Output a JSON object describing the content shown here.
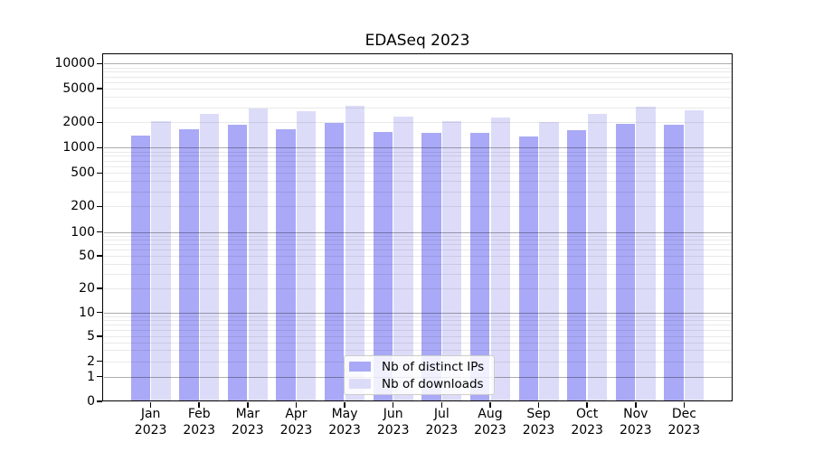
{
  "title": "EDASeq 2023",
  "chart_data": {
    "type": "bar",
    "title": "EDASeq 2023",
    "categories": [
      "Jan 2023",
      "Feb 2023",
      "Mar 2023",
      "Apr 2023",
      "May 2023",
      "Jun 2023",
      "Jul 2023",
      "Aug 2023",
      "Sep 2023",
      "Oct 2023",
      "Nov 2023",
      "Dec 2023"
    ],
    "series": [
      {
        "name": "Nb of distinct IPs",
        "color": "#a9a9f7",
        "values": [
          1400,
          1670,
          1850,
          1650,
          1950,
          1540,
          1490,
          1500,
          1340,
          1600,
          1920,
          1880
        ]
      },
      {
        "name": "Nb of downloads",
        "color": "#dcdcf9",
        "values": [
          2060,
          2500,
          2920,
          2690,
          3170,
          2320,
          2050,
          2280,
          2030,
          2540,
          3050,
          2780
        ]
      }
    ],
    "yscale": "log-symlog",
    "y_ticks": [
      0,
      1,
      2,
      5,
      10,
      20,
      50,
      100,
      200,
      500,
      1000,
      2000,
      5000,
      10000
    ],
    "ylim": [
      0,
      13000
    ],
    "xlabel": "",
    "ylabel": "",
    "grid": true,
    "legend_position": "lower center",
    "colors": {
      "background": "#ffffff",
      "spine": "#000000",
      "major_grid": "#b3b3b3",
      "minor_grid": "#e9e9e9"
    }
  }
}
